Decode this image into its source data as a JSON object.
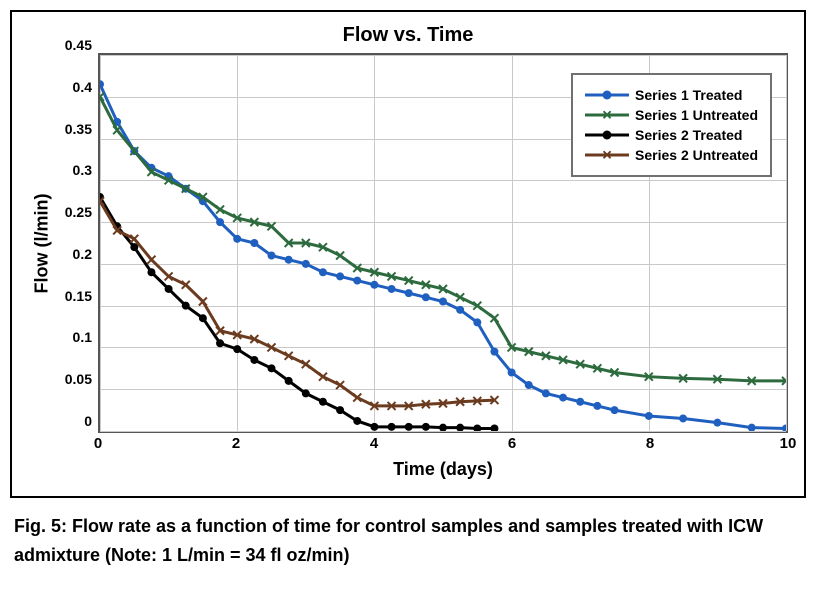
{
  "chart": {
    "type": "line",
    "title": "Flow vs. Time",
    "title_fontsize": 20,
    "xlabel": "Time (days)",
    "ylabel": "Flow (l/min)",
    "label_fontsize": 18,
    "tick_fontsize": 14,
    "xlim": [
      0,
      10
    ],
    "ylim": [
      0,
      0.45
    ],
    "xtick_step": 2,
    "xticks": [
      0,
      2,
      4,
      6,
      8,
      10
    ],
    "yticks": [
      0,
      0.05,
      0.1,
      0.15,
      0.2,
      0.25,
      0.3,
      0.35,
      0.4,
      0.45
    ],
    "background_color": "#ffffff",
    "grid_color": "#c9c9c9",
    "border_color": "#555555",
    "outer_border_color": "#000000",
    "line_width": 3,
    "marker_size": 8,
    "legend": {
      "position": "upper-right-inside",
      "border_color": "#707070",
      "items": [
        {
          "label": "Series 1 Treated",
          "color": "#1f5fbf",
          "marker": "circle"
        },
        {
          "label": "Series 1 Untreated",
          "color": "#2d6b3e",
          "marker": "x"
        },
        {
          "label": "Series 2 Treated",
          "color": "#000000",
          "marker": "circle"
        },
        {
          "label": "Series 2 Untreated",
          "color": "#6b3b1f",
          "marker": "x"
        }
      ]
    },
    "series": [
      {
        "name": "Series 1 Treated",
        "color": "#1f5fbf",
        "marker": "circle",
        "x": [
          0,
          0.25,
          0.5,
          0.75,
          1.0,
          1.25,
          1.5,
          1.75,
          2.0,
          2.25,
          2.5,
          2.75,
          3.0,
          3.25,
          3.5,
          3.75,
          4.0,
          4.25,
          4.5,
          4.75,
          5.0,
          5.25,
          5.5,
          5.75,
          6.0,
          6.25,
          6.5,
          6.75,
          7.0,
          7.25,
          7.5,
          8.0,
          8.5,
          9.0,
          9.5,
          10.0
        ],
        "y": [
          0.415,
          0.37,
          0.335,
          0.315,
          0.305,
          0.29,
          0.275,
          0.25,
          0.23,
          0.225,
          0.21,
          0.205,
          0.2,
          0.19,
          0.185,
          0.18,
          0.175,
          0.17,
          0.165,
          0.16,
          0.155,
          0.145,
          0.13,
          0.095,
          0.07,
          0.055,
          0.045,
          0.04,
          0.035,
          0.03,
          0.025,
          0.018,
          0.015,
          0.01,
          0.004,
          0.003
        ]
      },
      {
        "name": "Series 1 Untreated",
        "color": "#2d6b3e",
        "marker": "x",
        "x": [
          0,
          0.25,
          0.5,
          0.75,
          1.0,
          1.25,
          1.5,
          1.75,
          2.0,
          2.25,
          2.5,
          2.75,
          3.0,
          3.25,
          3.5,
          3.75,
          4.0,
          4.25,
          4.5,
          4.75,
          5.0,
          5.25,
          5.5,
          5.75,
          6.0,
          6.25,
          6.5,
          6.75,
          7.0,
          7.25,
          7.5,
          8.0,
          8.5,
          9.0,
          9.5,
          10.0
        ],
        "y": [
          0.4,
          0.36,
          0.335,
          0.31,
          0.3,
          0.29,
          0.28,
          0.265,
          0.255,
          0.25,
          0.245,
          0.225,
          0.225,
          0.22,
          0.21,
          0.195,
          0.19,
          0.185,
          0.18,
          0.175,
          0.17,
          0.16,
          0.15,
          0.135,
          0.1,
          0.095,
          0.09,
          0.085,
          0.08,
          0.075,
          0.07,
          0.065,
          0.063,
          0.062,
          0.06,
          0.06
        ]
      },
      {
        "name": "Series 2 Treated",
        "color": "#000000",
        "marker": "circle",
        "x": [
          0,
          0.25,
          0.5,
          0.75,
          1.0,
          1.25,
          1.5,
          1.75,
          2.0,
          2.25,
          2.5,
          2.75,
          3.0,
          3.25,
          3.5,
          3.75,
          4.0,
          4.25,
          4.5,
          4.75,
          5.0,
          5.25,
          5.5,
          5.75
        ],
        "y": [
          0.28,
          0.245,
          0.22,
          0.19,
          0.17,
          0.15,
          0.135,
          0.105,
          0.098,
          0.085,
          0.075,
          0.06,
          0.045,
          0.035,
          0.025,
          0.012,
          0.005,
          0.005,
          0.005,
          0.005,
          0.004,
          0.004,
          0.003,
          0.003
        ]
      },
      {
        "name": "Series 2 Untreated",
        "color": "#6b3b1f",
        "marker": "x",
        "x": [
          0,
          0.25,
          0.5,
          0.75,
          1.0,
          1.25,
          1.5,
          1.75,
          2.0,
          2.25,
          2.5,
          2.75,
          3.0,
          3.25,
          3.5,
          3.75,
          4.0,
          4.25,
          4.5,
          4.75,
          5.0,
          5.25,
          5.5,
          5.75
        ],
        "y": [
          0.275,
          0.24,
          0.23,
          0.205,
          0.185,
          0.175,
          0.155,
          0.12,
          0.115,
          0.11,
          0.1,
          0.09,
          0.08,
          0.065,
          0.055,
          0.04,
          0.03,
          0.03,
          0.03,
          0.032,
          0.033,
          0.035,
          0.036,
          0.037
        ]
      }
    ]
  },
  "caption": "Fig. 5: Flow rate as a function of time for control samples and samples treated with ICW admixture (Note: 1 L/min = 34 fl oz/min)"
}
